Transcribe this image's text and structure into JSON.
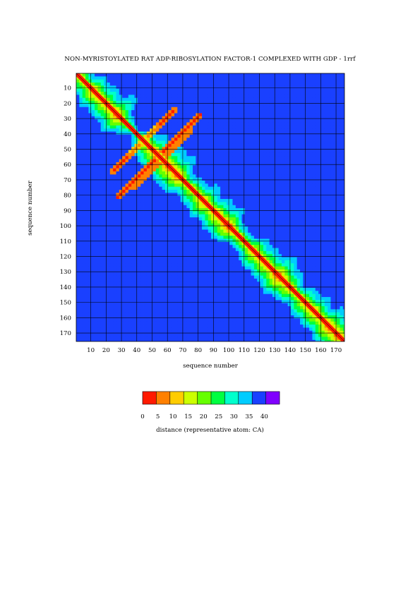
{
  "chart_data": {
    "type": "heatmap",
    "title": "NON-MYRISTOYLATED RAT ADP-RIBOSYLATION FACTOR-1 COMPLEXED WITH GDP - 1rrf",
    "xlabel": "sequence number",
    "ylabel": "sequence number",
    "x_ticks": [
      "10",
      "20",
      "30",
      "40",
      "50",
      "60",
      "70",
      "80",
      "90",
      "100",
      "110",
      "120",
      "130",
      "140",
      "150",
      "160",
      "170"
    ],
    "y_ticks": [
      "10",
      "20",
      "30",
      "40",
      "50",
      "60",
      "70",
      "80",
      "90",
      "100",
      "110",
      "120",
      "130",
      "140",
      "150",
      "160",
      "170"
    ],
    "x_range": [
      1,
      175
    ],
    "y_range": [
      1,
      175
    ],
    "colorbar": {
      "label": "distance (representative atom: CA)",
      "ticks": [
        "0",
        "5",
        "10",
        "15",
        "20",
        "25",
        "30",
        "35",
        "40"
      ],
      "range": [
        0,
        45
      ],
      "step": 5,
      "colors": [
        "#ff1a00",
        "#ff8000",
        "#ffcc00",
        "#ccff00",
        "#66ff00",
        "#00ff40",
        "#00ffcc",
        "#00ccff",
        "#1a40ff",
        "#8000ff"
      ]
    },
    "features": {
      "diagonal": "distance 0 along i=j",
      "antiparallel_contacts": [
        [
          35,
          55
        ],
        [
          50,
          65
        ],
        [
          40,
          70
        ]
      ],
      "far_regions": [
        [
          15,
          95
        ],
        [
          15,
          120
        ],
        [
          95,
          120
        ],
        [
          70,
          10
        ],
        [
          130,
          15
        ],
        [
          15,
          130
        ],
        [
          45,
          125
        ],
        [
          35,
          40
        ]
      ]
    }
  }
}
